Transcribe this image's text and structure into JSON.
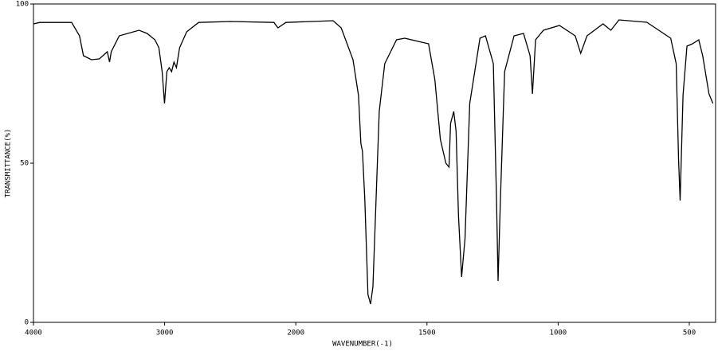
{
  "chart_data": {
    "type": "line",
    "xlabel": "WAVENUMBER(-1)",
    "ylabel": "TRANSMITTANCE(%)",
    "xlim": [
      4000,
      400
    ],
    "xticks": [
      4000,
      3000,
      2000,
      1500,
      1000,
      500
    ],
    "ylim": [
      0,
      100
    ],
    "yticks": [
      100,
      50,
      0
    ],
    "grid": false,
    "series": [
      {
        "color": "#000000",
        "x": [
          4000,
          3952,
          3709,
          3649,
          3619,
          3558,
          3498,
          3437,
          3420,
          3407,
          3346,
          3195,
          3134,
          3074,
          3044,
          3019,
          3001,
          2983,
          2965,
          2947,
          2929,
          2910,
          2886,
          2832,
          2741,
          2499,
          2167,
          2136,
          2076,
          1858,
          1827,
          1782,
          1761,
          1752,
          1746,
          1737,
          1725,
          1715,
          1706,
          1694,
          1682,
          1661,
          1616,
          1585,
          1494,
          1470,
          1449,
          1428,
          1416,
          1410,
          1398,
          1389,
          1380,
          1368,
          1355,
          1337,
          1298,
          1277,
          1247,
          1235,
          1229,
          1220,
          1204,
          1168,
          1132,
          1107,
          1098,
          1086,
          1056,
          995,
          935,
          914,
          890,
          829,
          799,
          768,
          662,
          571,
          550,
          541,
          535,
          524,
          509,
          488,
          464,
          449,
          425,
          410
        ],
        "values": [
          93.75,
          94.2,
          94.2,
          90,
          83.75,
          82.5,
          82.75,
          85,
          81.75,
          85,
          90,
          91.75,
          90.75,
          88.75,
          86.25,
          78.75,
          68.75,
          78.75,
          80,
          78.75,
          81.75,
          80,
          86.25,
          91.25,
          94.2,
          94.5,
          94.2,
          92.5,
          94.2,
          94.75,
          92.5,
          82.5,
          71.25,
          56.25,
          53.75,
          38.75,
          8.75,
          5.75,
          11.25,
          38.75,
          66.25,
          81.25,
          88.75,
          89.25,
          87.5,
          76.25,
          57.5,
          50,
          48.75,
          62.5,
          66.25,
          60,
          33.75,
          14.25,
          26.25,
          68.75,
          89.25,
          90,
          81.25,
          38.75,
          13,
          38.75,
          78.75,
          90,
          90.75,
          83.75,
          71.75,
          88.75,
          91.75,
          93.25,
          90,
          84.5,
          90,
          93.75,
          91.75,
          95,
          94.25,
          89.25,
          81.25,
          51.25,
          38.25,
          71.25,
          86.75,
          87.5,
          88.75,
          83.75,
          71.75,
          68.75
        ]
      }
    ]
  }
}
